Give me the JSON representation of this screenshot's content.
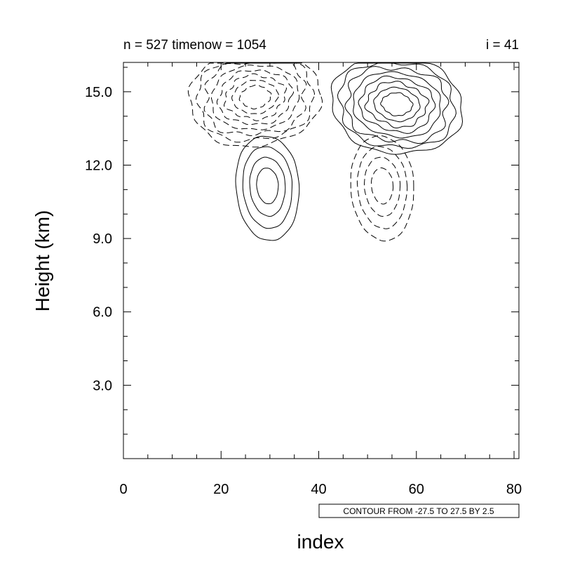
{
  "chart_data": {
    "type": "contour",
    "title_left": "n = 527 timenow = 1054",
    "title_right": "i = 41",
    "xlabel": "index",
    "ylabel": "Height (km)",
    "xlim": [
      0,
      81
    ],
    "ylim": [
      0,
      16.2
    ],
    "x_ticks": [
      "0",
      "20",
      "40",
      "60",
      "80"
    ],
    "y_ticks": [
      "3.0",
      "6.0",
      "9.0",
      "12.0",
      "15.0"
    ],
    "info_label": "CONTOUR FROM -27.5 TO 27.5 BY 2.5",
    "contour_levels": {
      "min": -27.5,
      "max": 27.5,
      "step": 2.5
    },
    "negative_style": "dashed",
    "positive_style": "solid",
    "features": [
      {
        "name": "upper-negative-lobe",
        "sign": "negative",
        "center": [
          27,
          14.8
        ],
        "extent_x": [
          13,
          40
        ],
        "extent_y": [
          12.3,
          16.2
        ]
      },
      {
        "name": "upper-positive-lobe",
        "sign": "positive",
        "center": [
          56,
          14.5
        ],
        "extent_x": [
          42,
          69
        ],
        "extent_y": [
          12.3,
          16.2
        ]
      },
      {
        "name": "lower-positive-cell",
        "sign": "positive",
        "center": [
          29.5,
          11.2
        ],
        "extent_x": [
          23,
          36
        ],
        "extent_y": [
          8.3,
          12.3
        ]
      },
      {
        "name": "lower-negative-cell",
        "sign": "negative",
        "center": [
          53,
          11.2
        ],
        "extent_x": [
          46,
          59
        ],
        "extent_y": [
          8.3,
          12.3
        ]
      }
    ]
  }
}
